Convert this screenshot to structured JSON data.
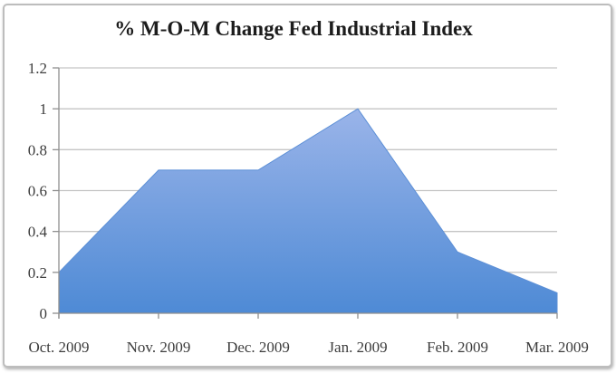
{
  "chart_data": {
    "type": "area",
    "title": "% M-O-M Change Fed Industrial Index",
    "categories": [
      "Oct. 2009",
      "Nov. 2009",
      "Dec. 2009",
      "Jan. 2009",
      "Feb. 2009",
      "Mar. 2009"
    ],
    "values": [
      0.2,
      0.7,
      0.7,
      1.0,
      0.3,
      0.1
    ],
    "xlabel": "",
    "ylabel": "",
    "ylim": [
      0,
      1.2
    ],
    "ytick_step": 0.2,
    "ytick_labels": [
      "0",
      "0.2",
      "0.4",
      "0.6",
      "0.8",
      "1",
      "1.2"
    ],
    "grid": true,
    "legend_position": "none",
    "colors": {
      "area_gradient_top": "#9ab4e9",
      "area_gradient_bottom": "#4e8ad5",
      "area_stroke": "#5c8fd6",
      "gridline": "#c5c5c5",
      "axis": "#8f8f8f",
      "tick_text": "#3d3d3d",
      "title_text": "#1c1c1c",
      "frame_border": "#bdbdbd",
      "background": "#ffffff"
    }
  }
}
